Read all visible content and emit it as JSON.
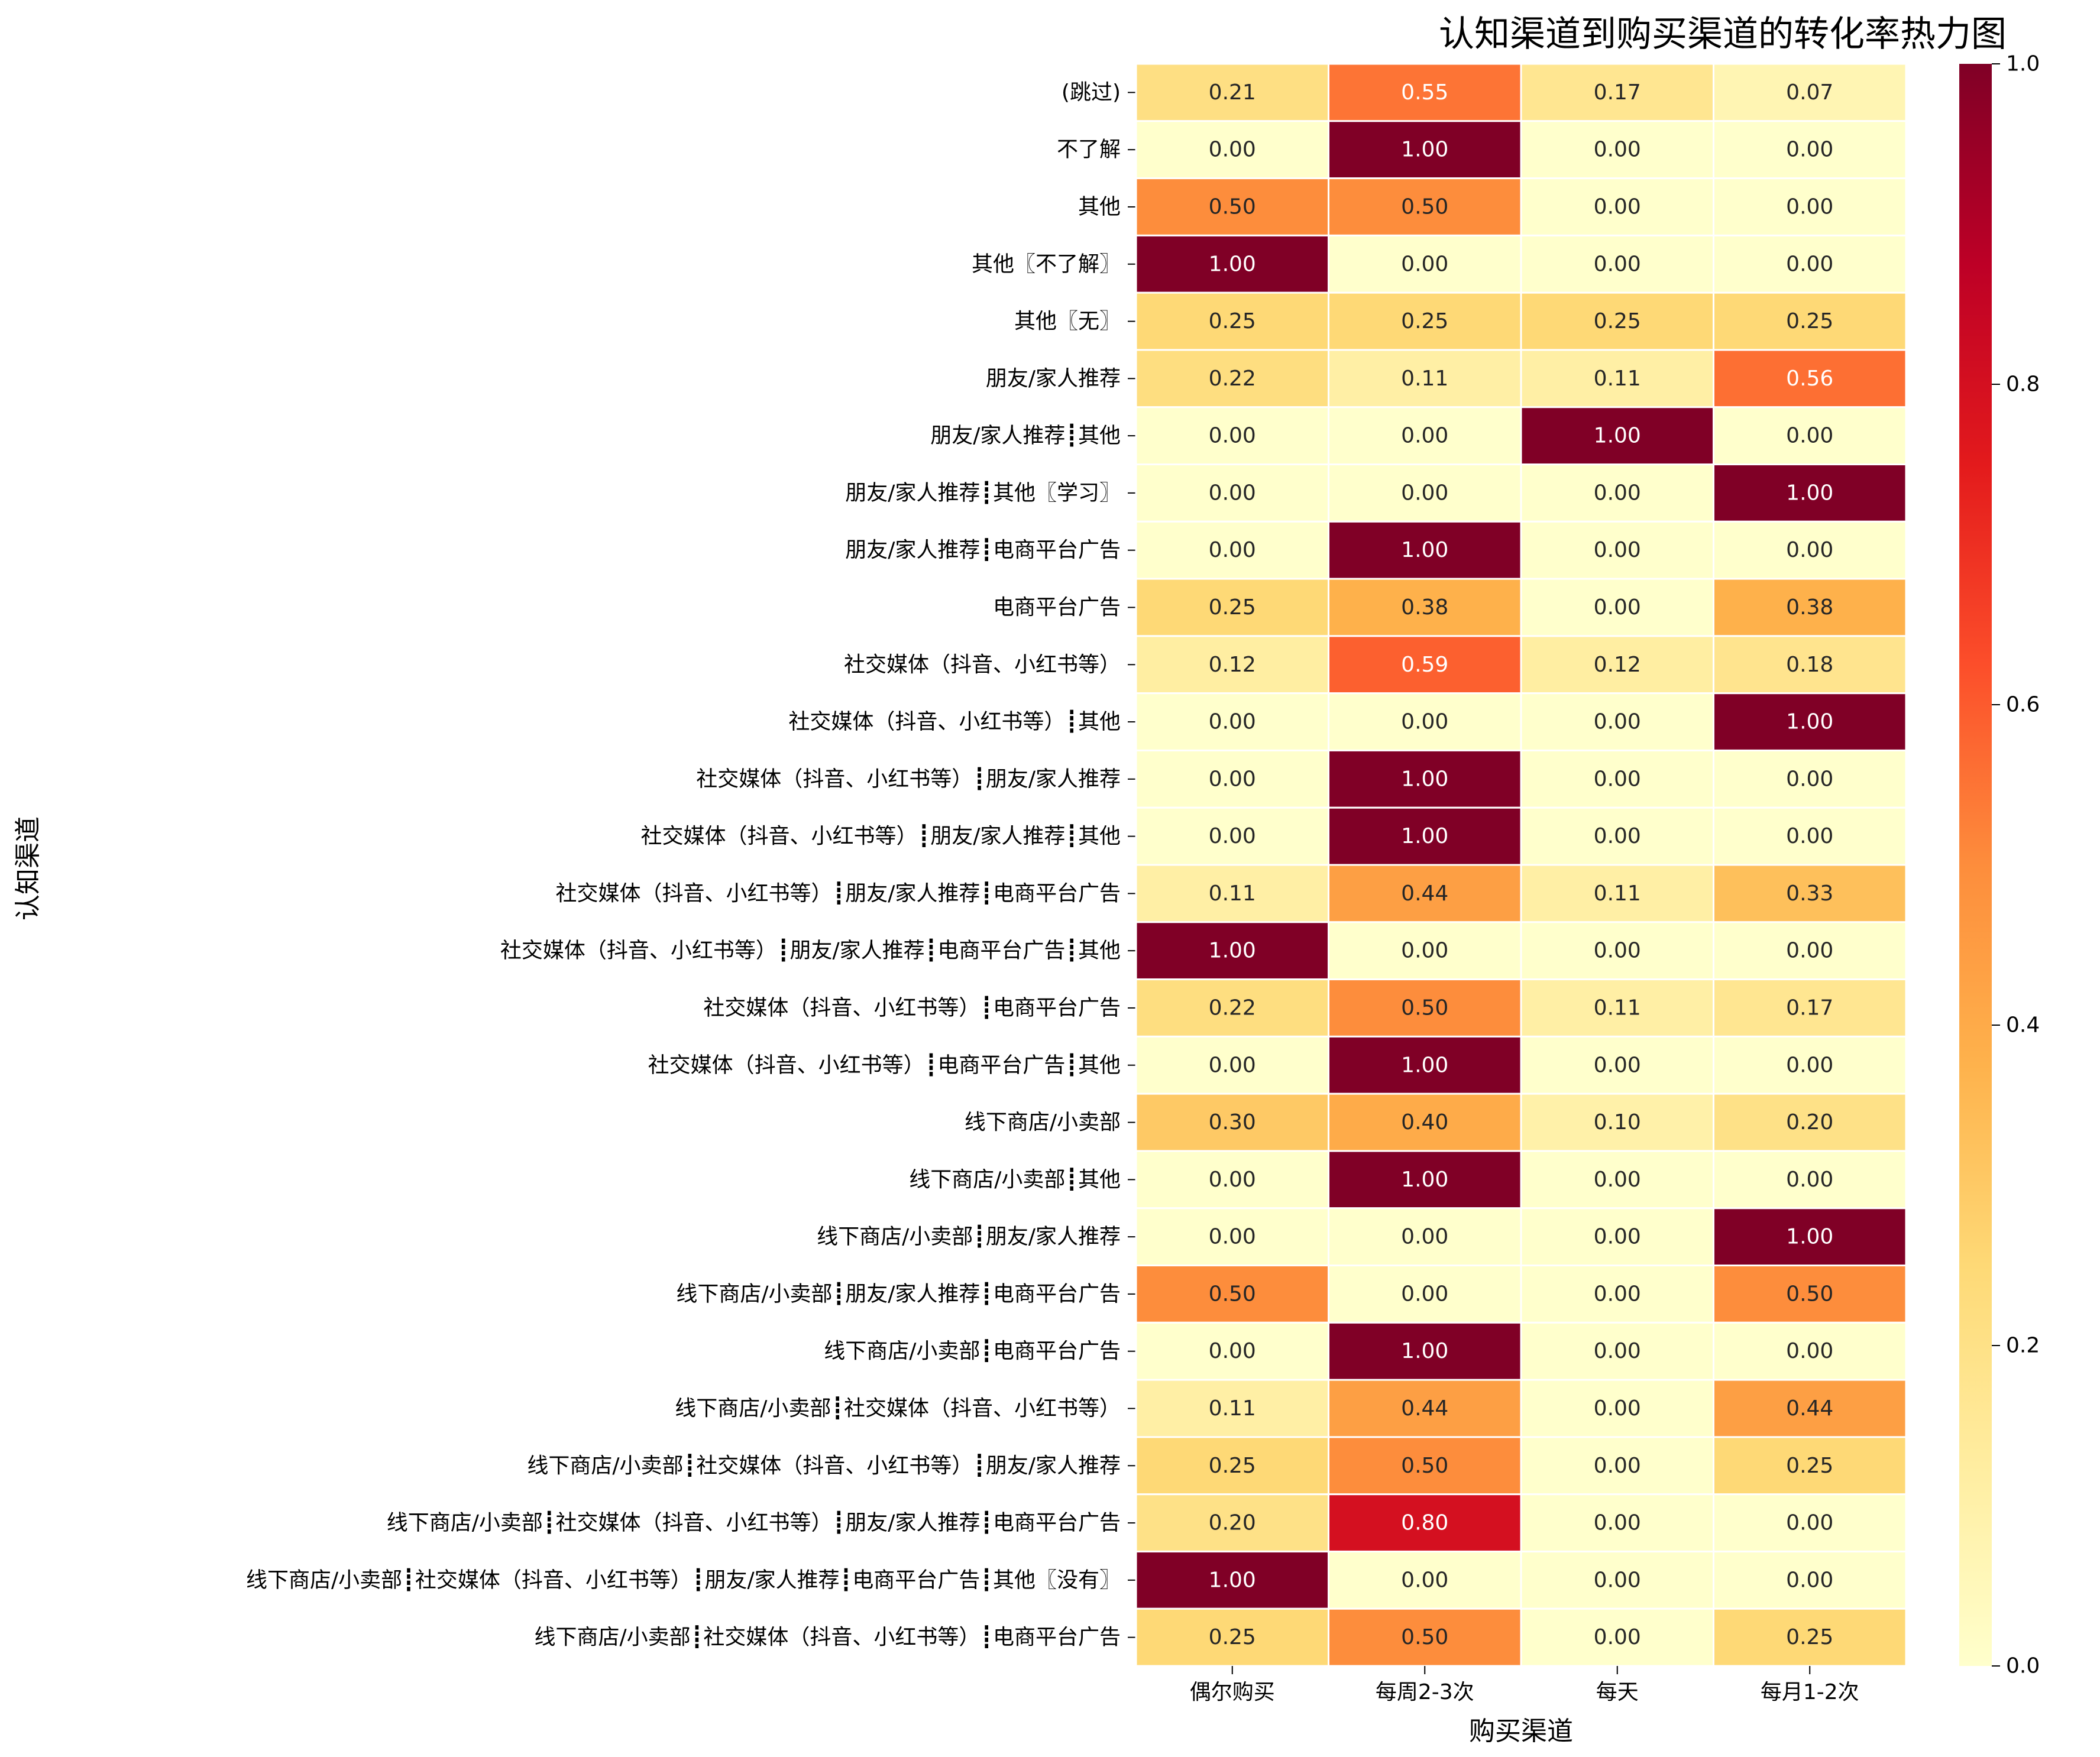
{
  "chart_data": {
    "type": "heatmap",
    "title": "认知渠道到购买渠道的转化率热力图",
    "xlabel": "购买渠道",
    "ylabel": "认知渠道",
    "x_categories": [
      "偶尔购买",
      "每周2-3次",
      "每天",
      "每月1-2次"
    ],
    "y_categories": [
      "(跳过)",
      "不了解",
      "其他",
      "其他〖不了解〗",
      "其他〖无〗",
      "朋友/家人推荐",
      "朋友/家人推荐┋其他",
      "朋友/家人推荐┋其他〖学习〗",
      "朋友/家人推荐┋电商平台广告",
      "电商平台广告",
      "社交媒体（抖音、小红书等）",
      "社交媒体（抖音、小红书等）┋其他",
      "社交媒体（抖音、小红书等）┋朋友/家人推荐",
      "社交媒体（抖音、小红书等）┋朋友/家人推荐┋其他",
      "社交媒体（抖音、小红书等）┋朋友/家人推荐┋电商平台广告",
      "社交媒体（抖音、小红书等）┋朋友/家人推荐┋电商平台广告┋其他",
      "社交媒体（抖音、小红书等）┋电商平台广告",
      "社交媒体（抖音、小红书等）┋电商平台广告┋其他",
      "线下商店/小卖部",
      "线下商店/小卖部┋其他",
      "线下商店/小卖部┋朋友/家人推荐",
      "线下商店/小卖部┋朋友/家人推荐┋电商平台广告",
      "线下商店/小卖部┋电商平台广告",
      "线下商店/小卖部┋社交媒体（抖音、小红书等）",
      "线下商店/小卖部┋社交媒体（抖音、小红书等）┋朋友/家人推荐",
      "线下商店/小卖部┋社交媒体（抖音、小红书等）┋朋友/家人推荐┋电商平台广告",
      "线下商店/小卖部┋社交媒体（抖音、小红书等）┋朋友/家人推荐┋电商平台广告┋其他〖没有〗",
      "线下商店/小卖部┋社交媒体（抖音、小红书等）┋电商平台广告"
    ],
    "values": [
      [
        0.21,
        0.55,
        0.17,
        0.07
      ],
      [
        0.0,
        1.0,
        0.0,
        0.0
      ],
      [
        0.5,
        0.5,
        0.0,
        0.0
      ],
      [
        1.0,
        0.0,
        0.0,
        0.0
      ],
      [
        0.25,
        0.25,
        0.25,
        0.25
      ],
      [
        0.22,
        0.11,
        0.11,
        0.56
      ],
      [
        0.0,
        0.0,
        1.0,
        0.0
      ],
      [
        0.0,
        0.0,
        0.0,
        1.0
      ],
      [
        0.0,
        1.0,
        0.0,
        0.0
      ],
      [
        0.25,
        0.38,
        0.0,
        0.38
      ],
      [
        0.12,
        0.59,
        0.12,
        0.18
      ],
      [
        0.0,
        0.0,
        0.0,
        1.0
      ],
      [
        0.0,
        1.0,
        0.0,
        0.0
      ],
      [
        0.0,
        1.0,
        0.0,
        0.0
      ],
      [
        0.11,
        0.44,
        0.11,
        0.33
      ],
      [
        1.0,
        0.0,
        0.0,
        0.0
      ],
      [
        0.22,
        0.5,
        0.11,
        0.17
      ],
      [
        0.0,
        1.0,
        0.0,
        0.0
      ],
      [
        0.3,
        0.4,
        0.1,
        0.2
      ],
      [
        0.0,
        1.0,
        0.0,
        0.0
      ],
      [
        0.0,
        0.0,
        0.0,
        1.0
      ],
      [
        0.5,
        0.0,
        0.0,
        0.5
      ],
      [
        0.0,
        1.0,
        0.0,
        0.0
      ],
      [
        0.11,
        0.44,
        0.0,
        0.44
      ],
      [
        0.25,
        0.5,
        0.0,
        0.25
      ],
      [
        0.2,
        0.8,
        0.0,
        0.0
      ],
      [
        1.0,
        0.0,
        0.0,
        0.0
      ],
      [
        0.25,
        0.5,
        0.0,
        0.25
      ]
    ],
    "value_format": "0.00",
    "colormap": "YlOrRd",
    "colormap_stops": [
      "#ffffcc",
      "#ffeda0",
      "#fed976",
      "#feb24c",
      "#fd8d3c",
      "#fc4e2a",
      "#e31a1c",
      "#bd0026",
      "#800026"
    ],
    "colorbar_range": [
      0.0,
      1.0
    ],
    "colorbar_ticks": [
      "0.0",
      "0.2",
      "0.4",
      "0.6",
      "0.8",
      "1.0"
    ],
    "light_text_color": "#ffffff",
    "dark_text_color": "#262626",
    "cell_border_color": "#ffffff"
  }
}
